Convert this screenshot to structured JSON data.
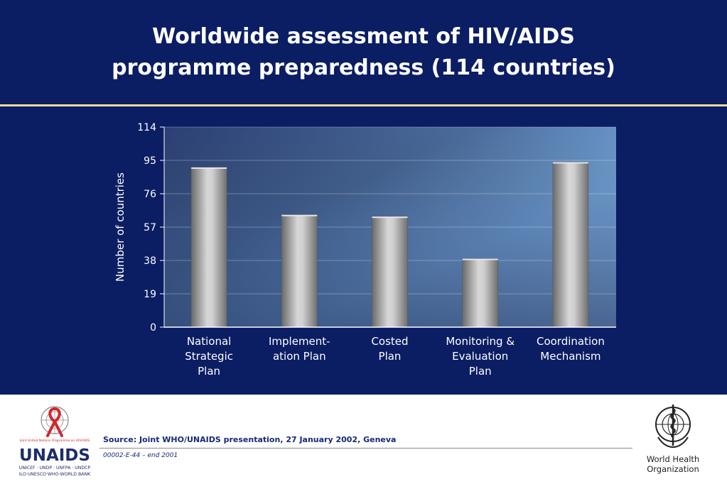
{
  "title": {
    "line1": "Worldwide assessment of HIV/AIDS",
    "line2": "programme preparedness (114 countries)"
  },
  "chart_data": {
    "type": "bar",
    "categories": [
      [
        "National",
        "Strategic",
        "Plan"
      ],
      [
        "Implement-",
        "ation Plan"
      ],
      [
        "Costed",
        "Plan"
      ],
      [
        "Monitoring &",
        "Evaluation",
        "Plan"
      ],
      [
        "Coordination",
        "Mechanism"
      ]
    ],
    "values": [
      91,
      64,
      63,
      39,
      94
    ],
    "ylabel": "Number of countries",
    "xlabel": "",
    "yticks": [
      0,
      19,
      38,
      57,
      76,
      95,
      114
    ],
    "ylim": [
      0,
      114
    ],
    "grid": true,
    "legend": "none"
  },
  "footer": {
    "source": "Source:  Joint WHO/UNAIDS presentation, 27 January 2002, Geneva",
    "doc_code": "00002-E-44 – end 2001",
    "unaids": {
      "tagline": "Joint United Nations Programme on HIV/AIDS",
      "name": "UNAIDS",
      "sponsors_line1": "UNICEF · UNDP · UNFPA · UNDCP",
      "sponsors_line2": "ILO·UNESCO·WHO·WORLD BANK"
    },
    "who": {
      "line1": "World Health",
      "line2": "Organization"
    }
  },
  "colors": {
    "background": "#0b1d63",
    "rule": "#f3dc9a",
    "ribbon": "#d3262f"
  }
}
